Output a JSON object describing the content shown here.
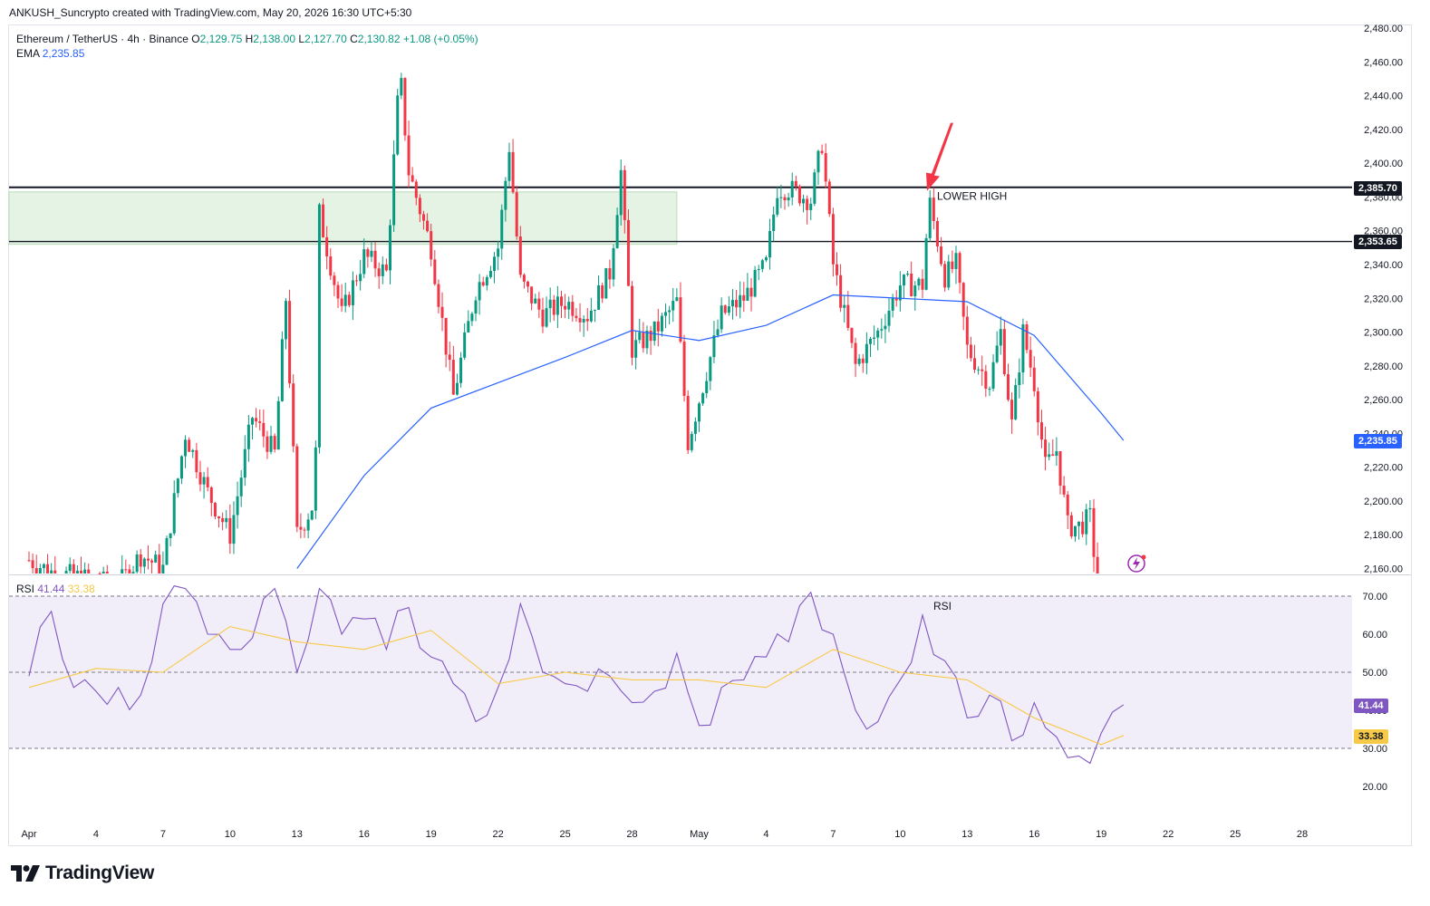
{
  "header": {
    "credit": "ANKUSH_Suncrypto created with TradingView.com, May 20, 2026 16:30 UTC+5:30"
  },
  "legend": {
    "symbol": "Ethereum / TetherUS · 4h · Binance",
    "o_label": "O",
    "o_value": "2,129.75",
    "h_label": "H",
    "h_value": "2,138.00",
    "l_label": "L",
    "l_value": "2,127.70",
    "c_label": "C",
    "c_value": "2,130.82",
    "change": "+1.08 (+0.05%)",
    "ema_label": "EMA",
    "ema_value": "2,235.85"
  },
  "rsi_legend": {
    "label": "RSI",
    "rsi_value": "41.44",
    "ma_value": "33.38"
  },
  "annotations": {
    "lower_high": "LOWER HIGH",
    "rsi_pane_label": "RSI"
  },
  "price_tags": {
    "level_high": "2,385.70",
    "level_low": "2,353.65",
    "ema": "2,235.85"
  },
  "rsi_tags": {
    "rsi": "41.44",
    "ma": "33.38"
  },
  "branding": {
    "wordmark": "TradingView"
  },
  "colors": {
    "up": "#089981",
    "down": "#f23645",
    "ema": "#2962ff",
    "rsi_line": "#7e57c2",
    "rsi_ma": "#f7c948",
    "zone_fill": "#e4f3e4",
    "arrow": "#f23645"
  },
  "chart_data": [
    {
      "type": "candlestick",
      "title": "Ethereum / TetherUS · 4h · Binance",
      "ylim": [
        2160,
        2480
      ],
      "y_ticks": [
        "2,160.00",
        "2,180.00",
        "2,200.00",
        "2,220.00",
        "2,240.00",
        "2,260.00",
        "2,280.00",
        "2,300.00",
        "2,320.00",
        "2,340.00",
        "2,360.00",
        "2,380.00",
        "2,400.00",
        "2,420.00",
        "2,440.00",
        "2,460.00",
        "2,480.00"
      ],
      "x_ticks": [
        "Apr",
        "4",
        "7",
        "10",
        "13",
        "16",
        "19",
        "22",
        "25",
        "28",
        "May",
        "4",
        "7",
        "10",
        "13",
        "16",
        "19",
        "22",
        "25",
        "28"
      ],
      "horizontal_levels": [
        2385.7,
        2353.65
      ],
      "supply_zone": {
        "top": 2383,
        "bottom": 2352,
        "start": "Apr 1",
        "end": "Apr 30"
      },
      "annotation": {
        "text": "LOWER HIGH",
        "date": "May 11",
        "price": 2382
      },
      "candles_anchor_path": [
        [
          "Apr 1",
          2165
        ],
        [
          "Apr 2",
          2158
        ],
        [
          "Apr 5",
          2150
        ],
        [
          "Apr 6",
          2168
        ],
        [
          "Apr 7",
          2160
        ],
        [
          "Apr 8",
          2240
        ],
        [
          "Apr 9",
          2205
        ],
        [
          "Apr 10",
          2180
        ],
        [
          "Apr 11",
          2250
        ],
        [
          "Apr 12",
          2228
        ],
        [
          "Apr 12.5",
          2320
        ],
        [
          "Apr 13",
          2180
        ],
        [
          "Apr 13.8",
          2200
        ],
        [
          "Apr 14",
          2370
        ],
        [
          "Apr 15",
          2310
        ],
        [
          "Apr 16",
          2345
        ],
        [
          "Apr 17",
          2335
        ],
        [
          "Apr 17.6",
          2455
        ],
        [
          "Apr 18",
          2395
        ],
        [
          "Apr 19",
          2350
        ],
        [
          "Apr 20",
          2262
        ],
        [
          "Apr 21",
          2325
        ],
        [
          "Apr 22",
          2350
        ],
        [
          "Apr 22.5",
          2410
        ],
        [
          "Apr 23",
          2330
        ],
        [
          "Apr 24",
          2310
        ],
        [
          "Apr 25",
          2318
        ],
        [
          "Apr 26",
          2310
        ],
        [
          "Apr 27",
          2335
        ],
        [
          "Apr 27.5",
          2395
        ],
        [
          "Apr 28",
          2290
        ],
        [
          "Apr 29",
          2300
        ],
        [
          "Apr 30",
          2318
        ],
        [
          "Apr 30.5",
          2235
        ],
        [
          "May 1",
          2260
        ],
        [
          "May 2",
          2310
        ],
        [
          "May 3",
          2320
        ],
        [
          "May 4",
          2340
        ],
        [
          "May 4.5",
          2385
        ],
        [
          "May 5",
          2385
        ],
        [
          "May 6",
          2378
        ],
        [
          "May 6.5",
          2412
        ],
        [
          "May 7",
          2340
        ],
        [
          "May 8",
          2280
        ],
        [
          "May 9",
          2300
        ],
        [
          "May 10",
          2328
        ],
        [
          "May 11",
          2328
        ],
        [
          "May 11.3",
          2378
        ],
        [
          "May 12",
          2333
        ],
        [
          "May 12.5",
          2340
        ],
        [
          "May 13",
          2290
        ],
        [
          "May 14",
          2270
        ],
        [
          "May 14.5",
          2300
        ],
        [
          "May 15",
          2245
        ],
        [
          "May 15.5",
          2300
        ],
        [
          "May 16",
          2270
        ],
        [
          "May 16.5",
          2220
        ],
        [
          "May 17",
          2230
        ],
        [
          "May 17.5",
          2185
        ],
        [
          "May 18",
          2185
        ],
        [
          "May 18.5",
          2190
        ],
        [
          "May 19",
          2131
        ]
      ]
    },
    {
      "type": "line",
      "title": "EMA",
      "series": [
        {
          "name": "EMA",
          "last": 2235.85,
          "x": [
            "Apr 13",
            "Apr 16",
            "Apr 19",
            "Apr 22",
            "Apr 25",
            "Apr 28",
            "May 1",
            "May 4",
            "May 7",
            "May 10",
            "May 13",
            "May 16",
            "May 19",
            "May 20"
          ],
          "values": [
            2160,
            2215,
            2255,
            2270,
            2285,
            2301,
            2295,
            2304,
            2322,
            2320,
            2318,
            2298,
            2252,
            2235.85
          ]
        }
      ]
    },
    {
      "type": "line",
      "title": "RSI",
      "ylim": [
        15,
        75
      ],
      "y_ticks": [
        "20.00",
        "30.00",
        "40.00",
        "50.00",
        "60.00",
        "70.00"
      ],
      "bands": [
        70,
        50,
        30
      ],
      "series": [
        {
          "name": "RSI",
          "last": 41.44,
          "x": [
            "Apr 1",
            "Apr 2",
            "Apr 3",
            "Apr 4",
            "Apr 5",
            "Apr 6",
            "Apr 7",
            "Apr 8",
            "Apr 9",
            "Apr 10",
            "Apr 11",
            "Apr 12",
            "Apr 13",
            "Apr 14",
            "Apr 15",
            "Apr 16",
            "Apr 17",
            "Apr 18",
            "Apr 19",
            "Apr 20",
            "Apr 21",
            "Apr 22",
            "Apr 23",
            "Apr 24",
            "Apr 25",
            "Apr 26",
            "Apr 27",
            "Apr 28",
            "Apr 29",
            "Apr 30",
            "May 1",
            "May 2",
            "May 3",
            "May 4",
            "May 5",
            "May 6",
            "May 7",
            "May 8",
            "May 9",
            "May 10",
            "May 11",
            "May 12",
            "May 13",
            "May 14",
            "May 15",
            "May 16",
            "May 17",
            "May 18",
            "May 19",
            "May 20"
          ],
          "values": [
            49,
            66,
            46,
            45,
            46,
            44,
            68,
            72,
            60,
            56,
            59,
            72,
            50,
            72,
            60,
            64,
            56,
            67,
            54,
            47,
            37,
            46,
            68,
            50,
            47,
            45,
            49,
            42,
            45,
            55,
            36,
            46,
            48,
            54,
            58,
            71,
            60,
            40,
            37,
            48,
            65,
            53,
            38,
            44,
            32,
            42,
            33,
            28,
            34,
            41.44
          ]
        },
        {
          "name": "RSI-based MA",
          "last": 33.38,
          "x": [
            "Apr 1",
            "Apr 4",
            "Apr 7",
            "Apr 10",
            "Apr 13",
            "Apr 16",
            "Apr 19",
            "Apr 22",
            "Apr 25",
            "Apr 28",
            "May 1",
            "May 4",
            "May 7",
            "May 10",
            "May 13",
            "May 16",
            "May 19",
            "May 20"
          ],
          "values": [
            46,
            51,
            50,
            62,
            58,
            56,
            61,
            47,
            50,
            48,
            48,
            46,
            56,
            50,
            48,
            38,
            31,
            33.38
          ]
        }
      ]
    }
  ]
}
